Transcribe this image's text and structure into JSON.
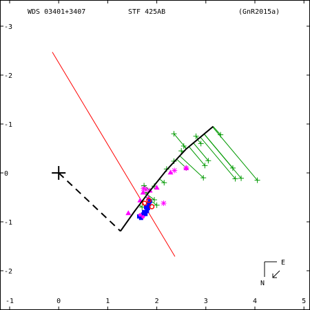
{
  "header": {
    "wds_id": "WDS 03401+3407",
    "discoverer": "STF 425AB",
    "reference": "(GnR2015a)"
  },
  "compass": {
    "north": "N",
    "east": "E"
  },
  "colors": {
    "axes": "#000000",
    "orbit": "#000000",
    "line_of_nodes": "#ff0000",
    "micrometer": "#009900",
    "speckle": "#ff00ff",
    "interferometric": "#0000ff",
    "residual_marker": "#ff0000"
  },
  "chart_data": {
    "type": "scatter",
    "title": "",
    "xlabel": "",
    "ylabel": "",
    "xlim": [
      -1,
      5
    ],
    "ylim": [
      -2.6,
      3.3
    ],
    "x_ticks": [
      "-1",
      "0",
      "1",
      "2",
      "3",
      "4",
      "5"
    ],
    "y_ticks": [
      "-2",
      "-1",
      "0",
      "1",
      "2",
      "3"
    ],
    "x_tick_values": [
      -1,
      0,
      1,
      2,
      3,
      4,
      5
    ],
    "y_tick_values": [
      -2,
      -1,
      0,
      1,
      2,
      3
    ],
    "y_tick_labels": [
      "-2",
      "-1",
      "0",
      "-1",
      "-2",
      "-3"
    ],
    "y_reversed": true,
    "primary": {
      "x": 0.0,
      "y": 0.0,
      "marker": "plus"
    },
    "orbit": [
      [
        1.26,
        -1.19
      ],
      [
        1.55,
        -0.78
      ],
      [
        1.85,
        -0.38
      ],
      [
        2.2,
        0.06
      ],
      [
        2.6,
        0.49
      ],
      [
        3.15,
        0.95
      ]
    ],
    "periastron_line": [
      [
        0.0,
        0.0
      ],
      [
        1.26,
        -1.19
      ]
    ],
    "line_of_nodes": [
      [
        -0.13,
        2.47
      ],
      [
        2.37,
        -1.71
      ]
    ],
    "series": [
      {
        "name": "micrometer",
        "marker": "plus",
        "points": [
          [
            1.74,
            -0.26
          ],
          [
            2.6,
            0.1
          ],
          [
            2.95,
            -0.1
          ],
          [
            4.05,
            -0.15
          ],
          [
            3.6,
            -0.12
          ],
          [
            3.55,
            0.1
          ],
          [
            2.35,
            0.8
          ],
          [
            2.8,
            0.75
          ],
          [
            3.3,
            0.78
          ],
          [
            1.95,
            -0.55
          ],
          [
            1.78,
            -0.4
          ],
          [
            2.5,
            0.45
          ],
          [
            2.55,
            0.55
          ],
          [
            2.9,
            0.6
          ],
          [
            3.05,
            0.25
          ],
          [
            2.15,
            -0.2
          ],
          [
            1.7,
            -0.7
          ],
          [
            2.0,
            -0.66
          ],
          [
            1.95,
            -0.27
          ],
          [
            2.2,
            0.08
          ],
          [
            3.72,
            -0.11
          ],
          [
            2.98,
            0.15
          ],
          [
            2.35,
            0.24
          ]
        ],
        "segments_to": [
          [
            2.5,
            0.0
          ],
          [
            2.55,
            0.2
          ],
          [
            2.85,
            0.9
          ],
          [
            2.1,
            -0.2
          ],
          [
            2.0,
            -0.4
          ],
          [
            2.25,
            -0.15
          ]
        ]
      },
      {
        "name": "speckle",
        "marker": "triangle",
        "points": [
          [
            1.42,
            -0.82
          ],
          [
            1.66,
            -0.56
          ],
          [
            1.83,
            -0.51
          ],
          [
            2.28,
            0.01
          ],
          [
            2.6,
            0.1
          ],
          [
            2.0,
            -0.3
          ],
          [
            1.72,
            -0.4
          ],
          [
            1.86,
            -0.36
          ]
        ]
      },
      {
        "name": "speckle-asterisk",
        "marker": "asterisk",
        "points": [
          [
            2.14,
            -0.62
          ],
          [
            2.6,
            0.1
          ],
          [
            2.36,
            0.05
          ],
          [
            1.78,
            -0.34
          ],
          [
            1.73,
            -0.32
          ]
        ]
      },
      {
        "name": "interferometric",
        "marker": "filled",
        "points": [
          [
            1.68,
            -0.92
          ],
          [
            1.72,
            -0.85
          ],
          [
            1.77,
            -0.84
          ],
          [
            1.8,
            -0.78
          ],
          [
            1.82,
            -0.72
          ],
          [
            1.78,
            -0.7
          ],
          [
            1.74,
            -0.8
          ],
          [
            1.84,
            -0.64
          ],
          [
            1.86,
            -0.58
          ],
          [
            1.64,
            -0.89
          ]
        ]
      },
      {
        "name": "residual-red",
        "marker": "ring",
        "points": [
          [
            1.9,
            -0.69
          ],
          [
            1.84,
            -0.56
          ],
          [
            1.75,
            -0.62
          ]
        ]
      }
    ]
  }
}
